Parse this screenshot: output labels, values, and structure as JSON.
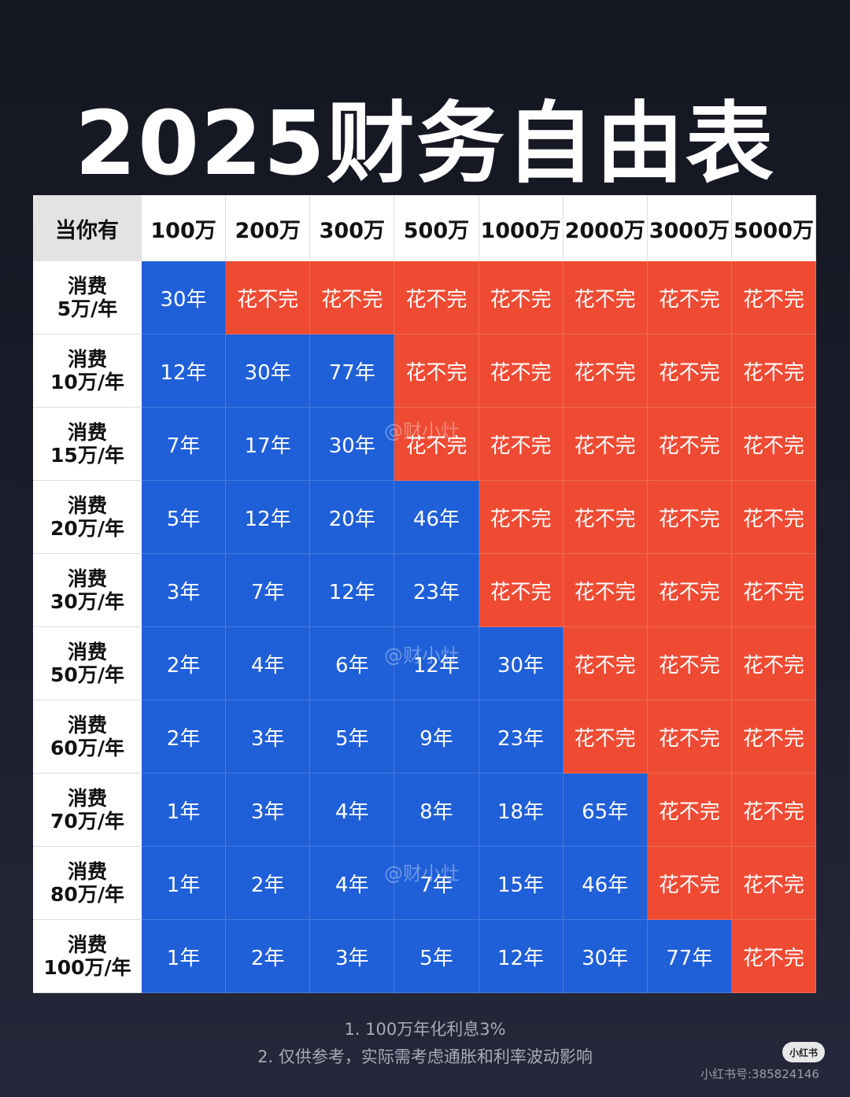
{
  "title": "2025财务自由表",
  "table": {
    "corner": "当你有",
    "columns": [
      "100万",
      "200万",
      "300万",
      "500万",
      "1000万",
      "2000万",
      "3000万",
      "5000万"
    ],
    "rows": [
      {
        "label": [
          "消费",
          "5万/年"
        ],
        "cells": [
          {
            "text": "30年",
            "color": "#1f5fd8"
          },
          {
            "text": "花不完",
            "color": "#ef4b33"
          },
          {
            "text": "花不完",
            "color": "#ef4b33"
          },
          {
            "text": "花不完",
            "color": "#ef4b33"
          },
          {
            "text": "花不完",
            "color": "#ef4b33"
          },
          {
            "text": "花不完",
            "color": "#ef4b33"
          },
          {
            "text": "花不完",
            "color": "#ef4b33"
          },
          {
            "text": "花不完",
            "color": "#ef4b33"
          }
        ]
      },
      {
        "label": [
          "消费",
          "10万/年"
        ],
        "cells": [
          {
            "text": "12年",
            "color": "#1f5fd8"
          },
          {
            "text": "30年",
            "color": "#1f5fd8"
          },
          {
            "text": "77年",
            "color": "#1f5fd8"
          },
          {
            "text": "花不完",
            "color": "#ef4b33"
          },
          {
            "text": "花不完",
            "color": "#ef4b33"
          },
          {
            "text": "花不完",
            "color": "#ef4b33"
          },
          {
            "text": "花不完",
            "color": "#ef4b33"
          },
          {
            "text": "花不完",
            "color": "#ef4b33"
          }
        ]
      },
      {
        "label": [
          "消费",
          "15万/年"
        ],
        "cells": [
          {
            "text": "7年",
            "color": "#1f5fd8"
          },
          {
            "text": "17年",
            "color": "#1f5fd8"
          },
          {
            "text": "30年",
            "color": "#1f5fd8"
          },
          {
            "text": "花不完",
            "color": "#ef4b33"
          },
          {
            "text": "花不完",
            "color": "#ef4b33"
          },
          {
            "text": "花不完",
            "color": "#ef4b33"
          },
          {
            "text": "花不完",
            "color": "#ef4b33"
          },
          {
            "text": "花不完",
            "color": "#ef4b33"
          }
        ]
      },
      {
        "label": [
          "消费",
          "20万/年"
        ],
        "cells": [
          {
            "text": "5年",
            "color": "#1f5fd8"
          },
          {
            "text": "12年",
            "color": "#1f5fd8"
          },
          {
            "text": "20年",
            "color": "#1f5fd8"
          },
          {
            "text": "46年",
            "color": "#1f5fd8"
          },
          {
            "text": "花不完",
            "color": "#ef4b33"
          },
          {
            "text": "花不完",
            "color": "#ef4b33"
          },
          {
            "text": "花不完",
            "color": "#ef4b33"
          },
          {
            "text": "花不完",
            "color": "#ef4b33"
          }
        ]
      },
      {
        "label": [
          "消费",
          "30万/年"
        ],
        "cells": [
          {
            "text": "3年",
            "color": "#1f5fd8"
          },
          {
            "text": "7年",
            "color": "#1f5fd8"
          },
          {
            "text": "12年",
            "color": "#1f5fd8"
          },
          {
            "text": "23年",
            "color": "#1f5fd8"
          },
          {
            "text": "花不完",
            "color": "#ef4b33"
          },
          {
            "text": "花不完",
            "color": "#ef4b33"
          },
          {
            "text": "花不完",
            "color": "#ef4b33"
          },
          {
            "text": "花不完",
            "color": "#ef4b33"
          }
        ]
      },
      {
        "label": [
          "消费",
          "50万/年"
        ],
        "cells": [
          {
            "text": "2年",
            "color": "#1f5fd8"
          },
          {
            "text": "4年",
            "color": "#1f5fd8"
          },
          {
            "text": "6年",
            "color": "#1f5fd8"
          },
          {
            "text": "12年",
            "color": "#1f5fd8"
          },
          {
            "text": "30年",
            "color": "#1f5fd8"
          },
          {
            "text": "花不完",
            "color": "#ef4b33"
          },
          {
            "text": "花不完",
            "color": "#ef4b33"
          },
          {
            "text": "花不完",
            "color": "#ef4b33"
          }
        ]
      },
      {
        "label": [
          "消费",
          "60万/年"
        ],
        "cells": [
          {
            "text": "2年",
            "color": "#1f5fd8"
          },
          {
            "text": "3年",
            "color": "#1f5fd8"
          },
          {
            "text": "5年",
            "color": "#1f5fd8"
          },
          {
            "text": "9年",
            "color": "#1f5fd8"
          },
          {
            "text": "23年",
            "color": "#1f5fd8"
          },
          {
            "text": "花不完",
            "color": "#ef4b33"
          },
          {
            "text": "花不完",
            "color": "#ef4b33"
          },
          {
            "text": "花不完",
            "color": "#ef4b33"
          }
        ]
      },
      {
        "label": [
          "消费",
          "70万/年"
        ],
        "cells": [
          {
            "text": "1年",
            "color": "#1f5fd8"
          },
          {
            "text": "3年",
            "color": "#1f5fd8"
          },
          {
            "text": "4年",
            "color": "#1f5fd8"
          },
          {
            "text": "8年",
            "color": "#1f5fd8"
          },
          {
            "text": "18年",
            "color": "#1f5fd8"
          },
          {
            "text": "65年",
            "color": "#1f5fd8"
          },
          {
            "text": "花不完",
            "color": "#ef4b33"
          },
          {
            "text": "花不完",
            "color": "#ef4b33"
          }
        ]
      },
      {
        "label": [
          "消费",
          "80万/年"
        ],
        "cells": [
          {
            "text": "1年",
            "color": "#1f5fd8"
          },
          {
            "text": "2年",
            "color": "#1f5fd8"
          },
          {
            "text": "4年",
            "color": "#1f5fd8"
          },
          {
            "text": "7年",
            "color": "#1f5fd8"
          },
          {
            "text": "15年",
            "color": "#1f5fd8"
          },
          {
            "text": "46年",
            "color": "#1f5fd8"
          },
          {
            "text": "花不完",
            "color": "#ef4b33"
          },
          {
            "text": "花不完",
            "color": "#ef4b33"
          }
        ]
      },
      {
        "label": [
          "消费",
          "100万/年"
        ],
        "cells": [
          {
            "text": "1年",
            "color": "#1f5fd8"
          },
          {
            "text": "2年",
            "color": "#1f5fd8"
          },
          {
            "text": "3年",
            "color": "#1f5fd8"
          },
          {
            "text": "5年",
            "color": "#1f5fd8"
          },
          {
            "text": "12年",
            "color": "#1f5fd8"
          },
          {
            "text": "30年",
            "color": "#1f5fd8"
          },
          {
            "text": "77年",
            "color": "#1f5fd8"
          },
          {
            "text": "花不完",
            "color": "#ef4b33"
          }
        ]
      }
    ]
  },
  "watermarks": [
    "@财小灶",
    "@财小灶",
    "@财小灶"
  ],
  "notes": [
    "1. 100万年化利息3%",
    "2. 仅供参考，实际需考虑通胀和利率波动影响"
  ],
  "footer": {
    "badge": "小红书",
    "account": "小红书号:385824146"
  }
}
